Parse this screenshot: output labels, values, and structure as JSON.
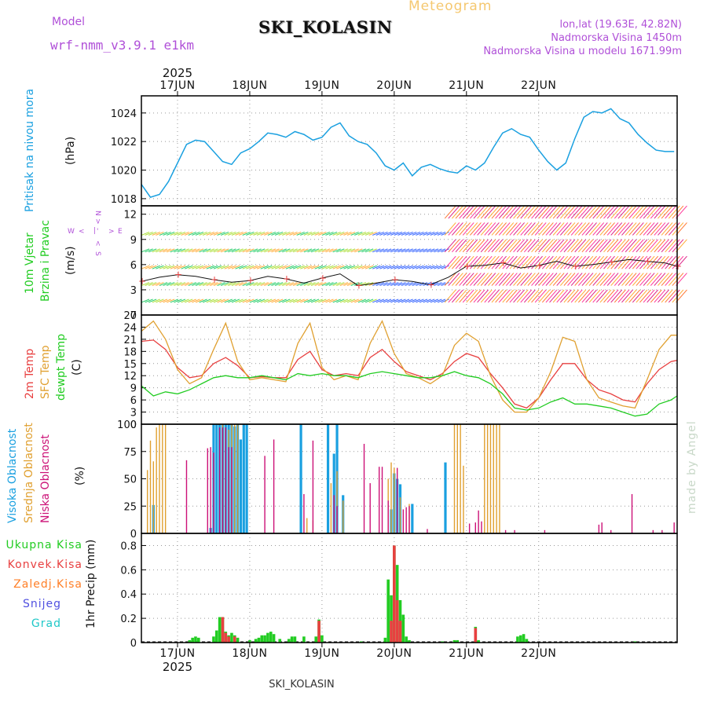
{
  "header": {
    "model_label": "Model",
    "model_name": "wrf-nmm_v3.9.1 e1km",
    "product": "Meteogram",
    "station": "SKI_KOLASIN",
    "lonlat": "lon,lat (19.63E, 42.82N)",
    "elevation": "Nadmorska Visina 1450m",
    "model_elevation": "Nadmorska Visina u modelu 1671.99m",
    "year": "2025",
    "footer_station": "SKI_KOLASIN",
    "watermark": "made by Angel"
  },
  "days": [
    "17JUN",
    "18JUN",
    "19JUN",
    "20JUN",
    "21JUN",
    "22JUN"
  ],
  "wind_legend": {
    "n": "N",
    "s": "S",
    "w": "W",
    "e": "E"
  },
  "panels": {
    "pressure": {
      "label": "Pritisak na nivou mora",
      "unit": "(hPa)",
      "color": "#1aa0e0"
    },
    "wind": {
      "label1": "10m Vjetar",
      "label2": "Brzina i Pravac",
      "unit": "(m/s)"
    },
    "temp": {
      "label1": "2m Temp",
      "label2": "SFC Temp",
      "label3": "dewpt Temp",
      "unit": "(C)"
    },
    "cloud": {
      "label1": "Visoka Oblacnost",
      "label2": "Srednja Oblacnost",
      "label3": "Niska Oblacnost",
      "unit": "(%)"
    },
    "precip": {
      "label": "1hr Precip (mm)",
      "legend": [
        "Ukupna Kisa",
        "Konvek.Kisa",
        "Zaledj.Kisa",
        "Snijeg",
        "Grad"
      ]
    }
  },
  "colors": {
    "pressure": "#1aa0e0",
    "t2m": "#e84040",
    "tsfc": "#e0a030",
    "dewpt": "#22cc22",
    "high_cloud": "#1aa0e0",
    "mid_cloud": "#e0a030",
    "low_cloud": "#cc1177",
    "total_rain": "#22cc22",
    "conv_rain": "#e84040",
    "freezing": "#ff7f27",
    "snow": "#5050e0",
    "hail": "#20c8c8"
  },
  "chart_data": [
    {
      "type": "line",
      "name": "pressure",
      "x_unit": "hours from 16 Jun 2025 12:00",
      "x": [
        0,
        3,
        6,
        9,
        12,
        15,
        18,
        21,
        24,
        27,
        30,
        33,
        36,
        39,
        42,
        45,
        48,
        51,
        54,
        57,
        60,
        63,
        66,
        69,
        72,
        75,
        78,
        81,
        84,
        87,
        90,
        93,
        96,
        99,
        102,
        105,
        108,
        111,
        114,
        117,
        120,
        123,
        126,
        129,
        132,
        135,
        138,
        141,
        144,
        147,
        150,
        153,
        156,
        159,
        162,
        165,
        168,
        171,
        174,
        177
      ],
      "y": [
        1019.0,
        1018.1,
        1018.3,
        1019.2,
        1020.5,
        1021.8,
        1022.1,
        1022.0,
        1021.3,
        1020.6,
        1020.4,
        1021.2,
        1021.5,
        1022.0,
        1022.6,
        1022.5,
        1022.3,
        1022.7,
        1022.5,
        1022.1,
        1022.3,
        1023.0,
        1023.3,
        1022.4,
        1022.0,
        1021.8,
        1021.2,
        1020.3,
        1020.0,
        1020.5,
        1019.6,
        1020.2,
        1020.4,
        1020.1,
        1019.9,
        1019.8,
        1020.3,
        1020.0,
        1020.5,
        1021.6,
        1022.6,
        1022.9,
        1022.5,
        1022.3,
        1021.4,
        1020.6,
        1020.0,
        1020.5,
        1022.2,
        1023.7,
        1024.1,
        1024.0,
        1024.3,
        1023.6,
        1023.3,
        1022.5,
        1021.9,
        1021.4,
        1021.3,
        1021.3
      ],
      "ylim": [
        1017.5,
        1025.2
      ],
      "yticks": [
        1018,
        1020,
        1022,
        1024
      ]
    },
    {
      "type": "line",
      "name": "wind_speed",
      "x_unit": "hours from 16 Jun 2025 12:00",
      "x": [
        0,
        6,
        12,
        18,
        24,
        30,
        36,
        42,
        48,
        54,
        60,
        66,
        72,
        78,
        84,
        90,
        96,
        102,
        108,
        114,
        120,
        126,
        132,
        138,
        144,
        150,
        156,
        162,
        168,
        174,
        178
      ],
      "y": [
        4.0,
        4.5,
        4.8,
        4.6,
        4.2,
        3.9,
        4.1,
        4.6,
        4.3,
        3.8,
        4.4,
        4.9,
        3.5,
        3.8,
        4.2,
        4.0,
        3.6,
        4.5,
        5.8,
        5.9,
        6.2,
        5.6,
        5.9,
        6.4,
        5.8,
        6.0,
        6.3,
        6.6,
        6.4,
        6.2,
        5.8
      ],
      "ylim": [
        0,
        13
      ],
      "yticks": [
        0,
        3,
        6,
        9,
        12
      ]
    },
    {
      "type": "line",
      "name": "temperature",
      "x_unit": "hours from 16 Jun 2025 12:00",
      "x": [
        0,
        4,
        8,
        12,
        16,
        20,
        24,
        28,
        32,
        36,
        40,
        44,
        48,
        52,
        56,
        60,
        64,
        68,
        72,
        76,
        80,
        84,
        88,
        92,
        96,
        100,
        104,
        108,
        112,
        116,
        120,
        124,
        128,
        132,
        136,
        140,
        144,
        148,
        152,
        156,
        160,
        164,
        168,
        172,
        176,
        178
      ],
      "series": [
        {
          "name": "2m Temp",
          "values": [
            20.5,
            20.8,
            18.5,
            14.0,
            11.5,
            12.0,
            15.0,
            16.5,
            14.5,
            11.5,
            11.8,
            11.5,
            11.5,
            16.0,
            18.0,
            13.5,
            12.0,
            12.5,
            12.0,
            16.5,
            18.5,
            15.5,
            13.0,
            12.0,
            11.0,
            12.5,
            15.5,
            17.5,
            16.5,
            12.5,
            9.0,
            5.0,
            4.0,
            6.5,
            11.0,
            15.0,
            15.0,
            11.0,
            8.5,
            7.5,
            6.0,
            5.5,
            10.0,
            13.5,
            15.5,
            15.8
          ]
        },
        {
          "name": "SFC Temp",
          "values": [
            23.0,
            25.5,
            21.0,
            13.5,
            10.0,
            11.5,
            18.5,
            25.0,
            15.5,
            11.0,
            11.5,
            11.0,
            10.5,
            20.0,
            25.0,
            14.0,
            11.0,
            12.0,
            11.0,
            20.0,
            25.5,
            17.5,
            12.5,
            11.5,
            10.0,
            12.0,
            19.5,
            22.5,
            20.5,
            12.0,
            6.0,
            3.0,
            3.0,
            6.5,
            13.0,
            21.5,
            20.5,
            11.0,
            6.5,
            5.5,
            4.5,
            4.0,
            11.0,
            18.5,
            22.0,
            22.0
          ]
        },
        {
          "name": "dewpt Temp",
          "values": [
            9.5,
            7.0,
            8.0,
            7.5,
            8.5,
            10.0,
            11.5,
            12.0,
            11.5,
            11.5,
            12.0,
            11.5,
            11.0,
            12.5,
            12.0,
            12.5,
            12.0,
            12.0,
            11.5,
            12.5,
            13.0,
            12.5,
            12.0,
            11.5,
            11.5,
            12.0,
            13.0,
            12.0,
            11.5,
            10.0,
            7.5,
            4.0,
            3.5,
            4.0,
            5.5,
            6.5,
            5.0,
            5.0,
            4.5,
            4.0,
            3.0,
            2.0,
            2.5,
            5.0,
            6.0,
            7.0
          ]
        }
      ],
      "ylim": [
        0,
        27
      ],
      "yticks": [
        0,
        3,
        6,
        9,
        12,
        15,
        18,
        21,
        24,
        27
      ]
    },
    {
      "type": "bar",
      "name": "cloud_cover",
      "x_unit": "hours from 16 Jun 2025 12:00",
      "series": [
        {
          "name": "Visoka Oblacnost",
          "points": [
            [
              4,
              26
            ],
            [
              23,
              5
            ],
            [
              24,
              100
            ],
            [
              25,
              100
            ],
            [
              26,
              100
            ],
            [
              27,
              100
            ],
            [
              28,
              100
            ],
            [
              29,
              100
            ],
            [
              30,
              100
            ],
            [
              31,
              98
            ],
            [
              32,
              100
            ],
            [
              33,
              86
            ],
            [
              34,
              100
            ],
            [
              35,
              100
            ],
            [
              53,
              100
            ],
            [
              62,
              100
            ],
            [
              64,
              73
            ],
            [
              65,
              100
            ],
            [
              67,
              35
            ],
            [
              83,
              22
            ],
            [
              84,
              55
            ],
            [
              85,
              50
            ],
            [
              86,
              45
            ],
            [
              90,
              27
            ],
            [
              101,
              65
            ]
          ]
        },
        {
          "name": "Srednja Oblacnost",
          "points": [
            [
              2,
              58
            ],
            [
              3,
              85
            ],
            [
              4,
              66
            ],
            [
              5,
              97
            ],
            [
              6,
              100
            ],
            [
              7,
              100
            ],
            [
              8,
              100
            ],
            [
              27,
              100
            ],
            [
              28,
              97
            ],
            [
              29,
              95
            ],
            [
              30,
              100
            ],
            [
              31,
              100
            ],
            [
              32,
              100
            ],
            [
              55,
              14
            ],
            [
              57,
              12
            ],
            [
              63,
              46
            ],
            [
              65,
              57
            ],
            [
              67,
              30
            ],
            [
              82,
              50
            ],
            [
              83,
              65
            ],
            [
              84,
              60
            ],
            [
              86,
              33
            ],
            [
              89,
              27
            ],
            [
              104,
              100
            ],
            [
              105,
              100
            ],
            [
              106,
              100
            ],
            [
              107,
              62
            ],
            [
              114,
              100
            ],
            [
              115,
              100
            ],
            [
              116,
              100
            ],
            [
              117,
              100
            ],
            [
              118,
              100
            ],
            [
              119,
              100
            ]
          ]
        },
        {
          "name": "Niska Oblacnost",
          "points": [
            [
              15,
              67
            ],
            [
              22,
              78
            ],
            [
              23,
              79
            ],
            [
              24,
              74
            ],
            [
              26,
              97
            ],
            [
              27,
              97
            ],
            [
              28,
              97
            ],
            [
              29,
              79
            ],
            [
              30,
              79
            ],
            [
              41,
              71
            ],
            [
              44,
              86
            ],
            [
              54,
              36
            ],
            [
              57,
              85
            ],
            [
              64,
              35
            ],
            [
              65,
              25
            ],
            [
              74,
              82
            ],
            [
              76,
              46
            ],
            [
              79,
              61
            ],
            [
              80,
              61
            ],
            [
              82,
              30
            ],
            [
              85,
              60
            ],
            [
              87,
              22
            ],
            [
              88,
              24
            ],
            [
              89,
              25
            ],
            [
              95,
              4
            ],
            [
              109,
              9
            ],
            [
              111,
              10
            ],
            [
              112,
              21
            ],
            [
              113,
              11
            ],
            [
              121,
              3
            ],
            [
              124,
              3
            ],
            [
              134,
              3
            ],
            [
              152,
              8
            ],
            [
              153,
              10
            ],
            [
              156,
              3
            ],
            [
              163,
              36
            ],
            [
              170,
              3
            ],
            [
              173,
              3
            ],
            [
              177,
              10
            ]
          ]
        }
      ],
      "ylim": [
        0,
        100
      ],
      "yticks": [
        0,
        25,
        50,
        75,
        100
      ]
    },
    {
      "type": "bar",
      "name": "precipitation",
      "x_unit": "hours from 16 Jun 2025 12:00",
      "series": [
        {
          "name": "Ukupna Kisa",
          "points": [
            [
              16,
              0.02
            ],
            [
              17,
              0.04
            ],
            [
              18,
              0.05
            ],
            [
              19,
              0.04
            ],
            [
              24,
              0.05
            ],
            [
              25,
              0.1
            ],
            [
              26,
              0.21
            ],
            [
              27,
              0.21
            ],
            [
              28,
              0.09
            ],
            [
              29,
              0.06
            ],
            [
              30,
              0.08
            ],
            [
              31,
              0.06
            ],
            [
              32,
              0.04
            ],
            [
              36,
              0.02
            ],
            [
              38,
              0.03
            ],
            [
              39,
              0.04
            ],
            [
              40,
              0.06
            ],
            [
              41,
              0.06
            ],
            [
              42,
              0.08
            ],
            [
              43,
              0.09
            ],
            [
              44,
              0.07
            ],
            [
              46,
              0.03
            ],
            [
              49,
              0.03
            ],
            [
              50,
              0.05
            ],
            [
              51,
              0.05
            ],
            [
              54,
              0.05
            ],
            [
              58,
              0.05
            ],
            [
              59,
              0.19
            ],
            [
              60,
              0.06
            ],
            [
              73,
              0.01
            ],
            [
              81,
              0.04
            ],
            [
              82,
              0.52
            ],
            [
              83,
              0.39
            ],
            [
              84,
              0.8
            ],
            [
              85,
              0.64
            ],
            [
              86,
              0.35
            ],
            [
              87,
              0.23
            ],
            [
              88,
              0.05
            ],
            [
              89,
              0.02
            ],
            [
              100,
              0.01
            ],
            [
              104,
              0.02
            ],
            [
              105,
              0.02
            ],
            [
              111,
              0.13
            ],
            [
              112,
              0.02
            ],
            [
              125,
              0.05
            ],
            [
              126,
              0.06
            ],
            [
              127,
              0.07
            ],
            [
              128,
              0.03
            ],
            [
              164,
              0.01
            ]
          ]
        },
        {
          "name": "Konvek.Kisa",
          "points": [
            [
              27,
              0.21
            ],
            [
              28,
              0.08
            ],
            [
              29,
              0.05
            ],
            [
              31,
              0.05
            ],
            [
              59,
              0.18
            ],
            [
              83,
              0.18
            ],
            [
              84,
              0.8
            ],
            [
              85,
              0.35
            ],
            [
              86,
              0.18
            ],
            [
              111,
              0.12
            ]
          ]
        }
      ],
      "ylim": [
        0,
        0.9
      ],
      "yticks": [
        0,
        0.2,
        0.4,
        0.6,
        0.8
      ]
    }
  ]
}
